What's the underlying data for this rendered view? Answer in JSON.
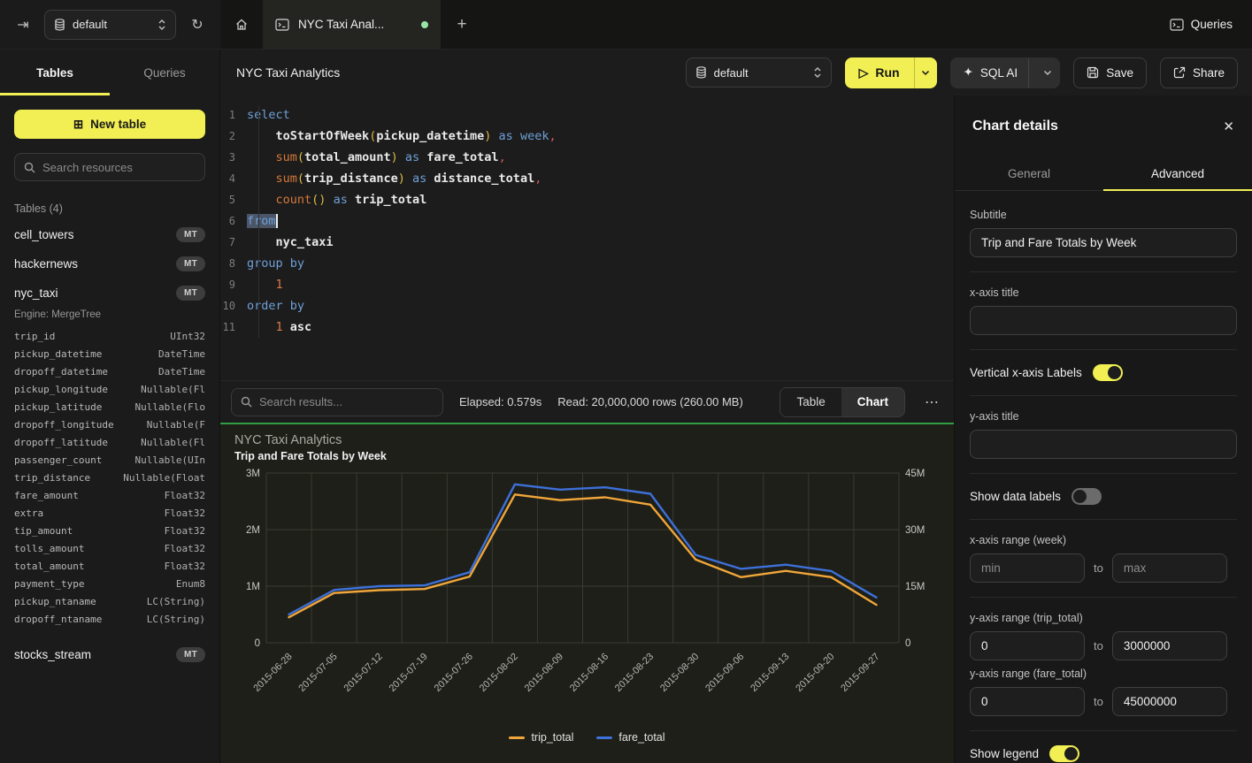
{
  "icons": {
    "collapse": "⇥",
    "refresh": "↻",
    "plus": "+",
    "close": "✕",
    "more": "⋯",
    "table": "⊞",
    "play": "▷",
    "sparkle": "✦"
  },
  "topbar": {
    "service_selector": "default",
    "tab_title": "NYC Taxi Anal...",
    "queries_label": "Queries"
  },
  "sidebar": {
    "tables_tab": "Tables",
    "queries_tab": "Queries",
    "new_table_label": "New table",
    "search_placeholder": "Search resources",
    "section_label": "Tables (4)",
    "tables": [
      {
        "name": "cell_towers",
        "badge": "MT"
      },
      {
        "name": "hackernews",
        "badge": "MT"
      },
      {
        "name": "nyc_taxi",
        "badge": "MT",
        "engine": "Engine: MergeTree",
        "columns": [
          [
            "trip_id",
            "UInt32"
          ],
          [
            "pickup_datetime",
            "DateTime"
          ],
          [
            "dropoff_datetime",
            "DateTime"
          ],
          [
            "pickup_longitude",
            "Nullable(Fl"
          ],
          [
            "pickup_latitude",
            "Nullable(Flo"
          ],
          [
            "dropoff_longitude",
            "Nullable(F"
          ],
          [
            "dropoff_latitude",
            "Nullable(Fl"
          ],
          [
            "passenger_count",
            "Nullable(UIn"
          ],
          [
            "trip_distance",
            "Nullable(Float"
          ],
          [
            "fare_amount",
            "Float32"
          ],
          [
            "extra",
            "Float32"
          ],
          [
            "tip_amount",
            "Float32"
          ],
          [
            "tolls_amount",
            "Float32"
          ],
          [
            "total_amount",
            "Float32"
          ],
          [
            "payment_type",
            "Enum8"
          ],
          [
            "pickup_ntaname",
            "LC(String)"
          ],
          [
            "dropoff_ntaname",
            "LC(String)"
          ]
        ]
      },
      {
        "name": "stocks_stream",
        "badge": "MT",
        "gap": true
      }
    ]
  },
  "main_toolbar": {
    "title": "NYC Taxi Analytics",
    "database_selector": "default",
    "run_label": "Run",
    "sql_ai_label": "SQL AI",
    "save_label": "Save",
    "share_label": "Share"
  },
  "editor": {
    "lines": [
      {
        "n": "1",
        "t": [
          [
            "select",
            "kw"
          ]
        ]
      },
      {
        "n": "2",
        "t": [
          [
            "    ",
            "pl"
          ],
          [
            "toStartOfWeek",
            "id"
          ],
          [
            "(",
            "pr"
          ],
          [
            "pickup_datetime",
            "id"
          ],
          [
            ")",
            "pr"
          ],
          [
            " ",
            "pl"
          ],
          [
            "as",
            "kw"
          ],
          [
            " ",
            "pl"
          ],
          [
            "week",
            "kw"
          ],
          [
            ",",
            "cm"
          ]
        ]
      },
      {
        "n": "3",
        "t": [
          [
            "    ",
            "pl"
          ],
          [
            "sum",
            "fn"
          ],
          [
            "(",
            "pr"
          ],
          [
            "total_amount",
            "id"
          ],
          [
            ")",
            "pr"
          ],
          [
            " ",
            "pl"
          ],
          [
            "as",
            "kw"
          ],
          [
            " ",
            "pl"
          ],
          [
            "fare_total",
            "id"
          ],
          [
            ",",
            "cm"
          ]
        ]
      },
      {
        "n": "4",
        "t": [
          [
            "    ",
            "pl"
          ],
          [
            "sum",
            "fn"
          ],
          [
            "(",
            "pr"
          ],
          [
            "trip_distance",
            "id"
          ],
          [
            ")",
            "pr"
          ],
          [
            " ",
            "pl"
          ],
          [
            "as",
            "kw"
          ],
          [
            " ",
            "pl"
          ],
          [
            "distance_total",
            "id"
          ],
          [
            ",",
            "cm"
          ]
        ]
      },
      {
        "n": "5",
        "t": [
          [
            "    ",
            "pl"
          ],
          [
            "count",
            "fn"
          ],
          [
            "()",
            "pr"
          ],
          [
            " ",
            "pl"
          ],
          [
            "as",
            "kw"
          ],
          [
            " ",
            "pl"
          ],
          [
            "trip_total",
            "id"
          ]
        ]
      },
      {
        "n": "6",
        "t": [
          [
            "from",
            "kw sel"
          ],
          [
            "",
            "caret"
          ]
        ]
      },
      {
        "n": "7",
        "t": [
          [
            "    ",
            "pl"
          ],
          [
            "nyc_taxi",
            "id"
          ]
        ]
      },
      {
        "n": "8",
        "t": [
          [
            "group by",
            "kw"
          ]
        ]
      },
      {
        "n": "9",
        "t": [
          [
            "    ",
            "pl"
          ],
          [
            "1",
            "nm"
          ]
        ]
      },
      {
        "n": "10",
        "t": [
          [
            "order by",
            "kw"
          ]
        ]
      },
      {
        "n": "11",
        "t": [
          [
            "    ",
            "pl"
          ],
          [
            "1",
            "nm"
          ],
          [
            " ",
            "pl"
          ],
          [
            "asc",
            "id"
          ]
        ]
      }
    ]
  },
  "results_bar": {
    "search_placeholder": "Search results...",
    "elapsed": "Elapsed: 0.579s",
    "read": "Read: 20,000,000 rows (260.00 MB)",
    "table_label": "Table",
    "chart_label": "Chart"
  },
  "chart_data": {
    "type": "line",
    "title": "NYC Taxi Analytics",
    "subtitle": "Trip and Fare Totals by Week",
    "categories": [
      "2015-06-28",
      "2015-07-05",
      "2015-07-12",
      "2015-07-19",
      "2015-07-26",
      "2015-08-02",
      "2015-08-09",
      "2015-08-16",
      "2015-08-23",
      "2015-08-30",
      "2015-09-06",
      "2015-09-13",
      "2015-09-20",
      "2015-09-27"
    ],
    "series": [
      {
        "name": "trip_total",
        "color": "#f0a63a",
        "axis": "left",
        "values": [
          450000,
          880000,
          930000,
          950000,
          1170000,
          2620000,
          2520000,
          2570000,
          2440000,
          1470000,
          1160000,
          1270000,
          1160000,
          670000
        ]
      },
      {
        "name": "fare_total",
        "color": "#3d70d9",
        "axis": "right",
        "values": [
          7500000,
          14000000,
          15000000,
          15200000,
          18700000,
          42000000,
          40600000,
          41200000,
          39500000,
          23300000,
          19600000,
          20700000,
          19000000,
          12000000
        ]
      }
    ],
    "left_axis": {
      "min": 0,
      "max": 3000000,
      "ticks": [
        "0",
        "1M",
        "2M",
        "3M"
      ]
    },
    "right_axis": {
      "min": 0,
      "max": 45000000,
      "ticks": [
        "0",
        "15M",
        "30M",
        "45M"
      ]
    },
    "grid": true,
    "legend_position": "bottom"
  },
  "panel": {
    "title": "Chart details",
    "general_tab": "General",
    "advanced_tab": "Advanced",
    "fields": {
      "subtitle_label": "Subtitle",
      "subtitle_value": "Trip and Fare Totals by Week",
      "x_axis_title_label": "x-axis title",
      "vertical_labels_label": "Vertical x-axis Labels",
      "y_axis_title_label": "y-axis title",
      "data_labels_label": "Show data labels",
      "x_range_label": "x-axis range (week)",
      "min_placeholder": "min",
      "max_placeholder": "max",
      "to_label": "to",
      "y_range_trip_label": "y-axis range (trip_total)",
      "y_trip_min": "0",
      "y_trip_max": "3000000",
      "y_range_fare_label": "y-axis range (fare_total)",
      "y_fare_min": "0",
      "y_fare_max": "45000000",
      "legend_label": "Show legend"
    }
  }
}
